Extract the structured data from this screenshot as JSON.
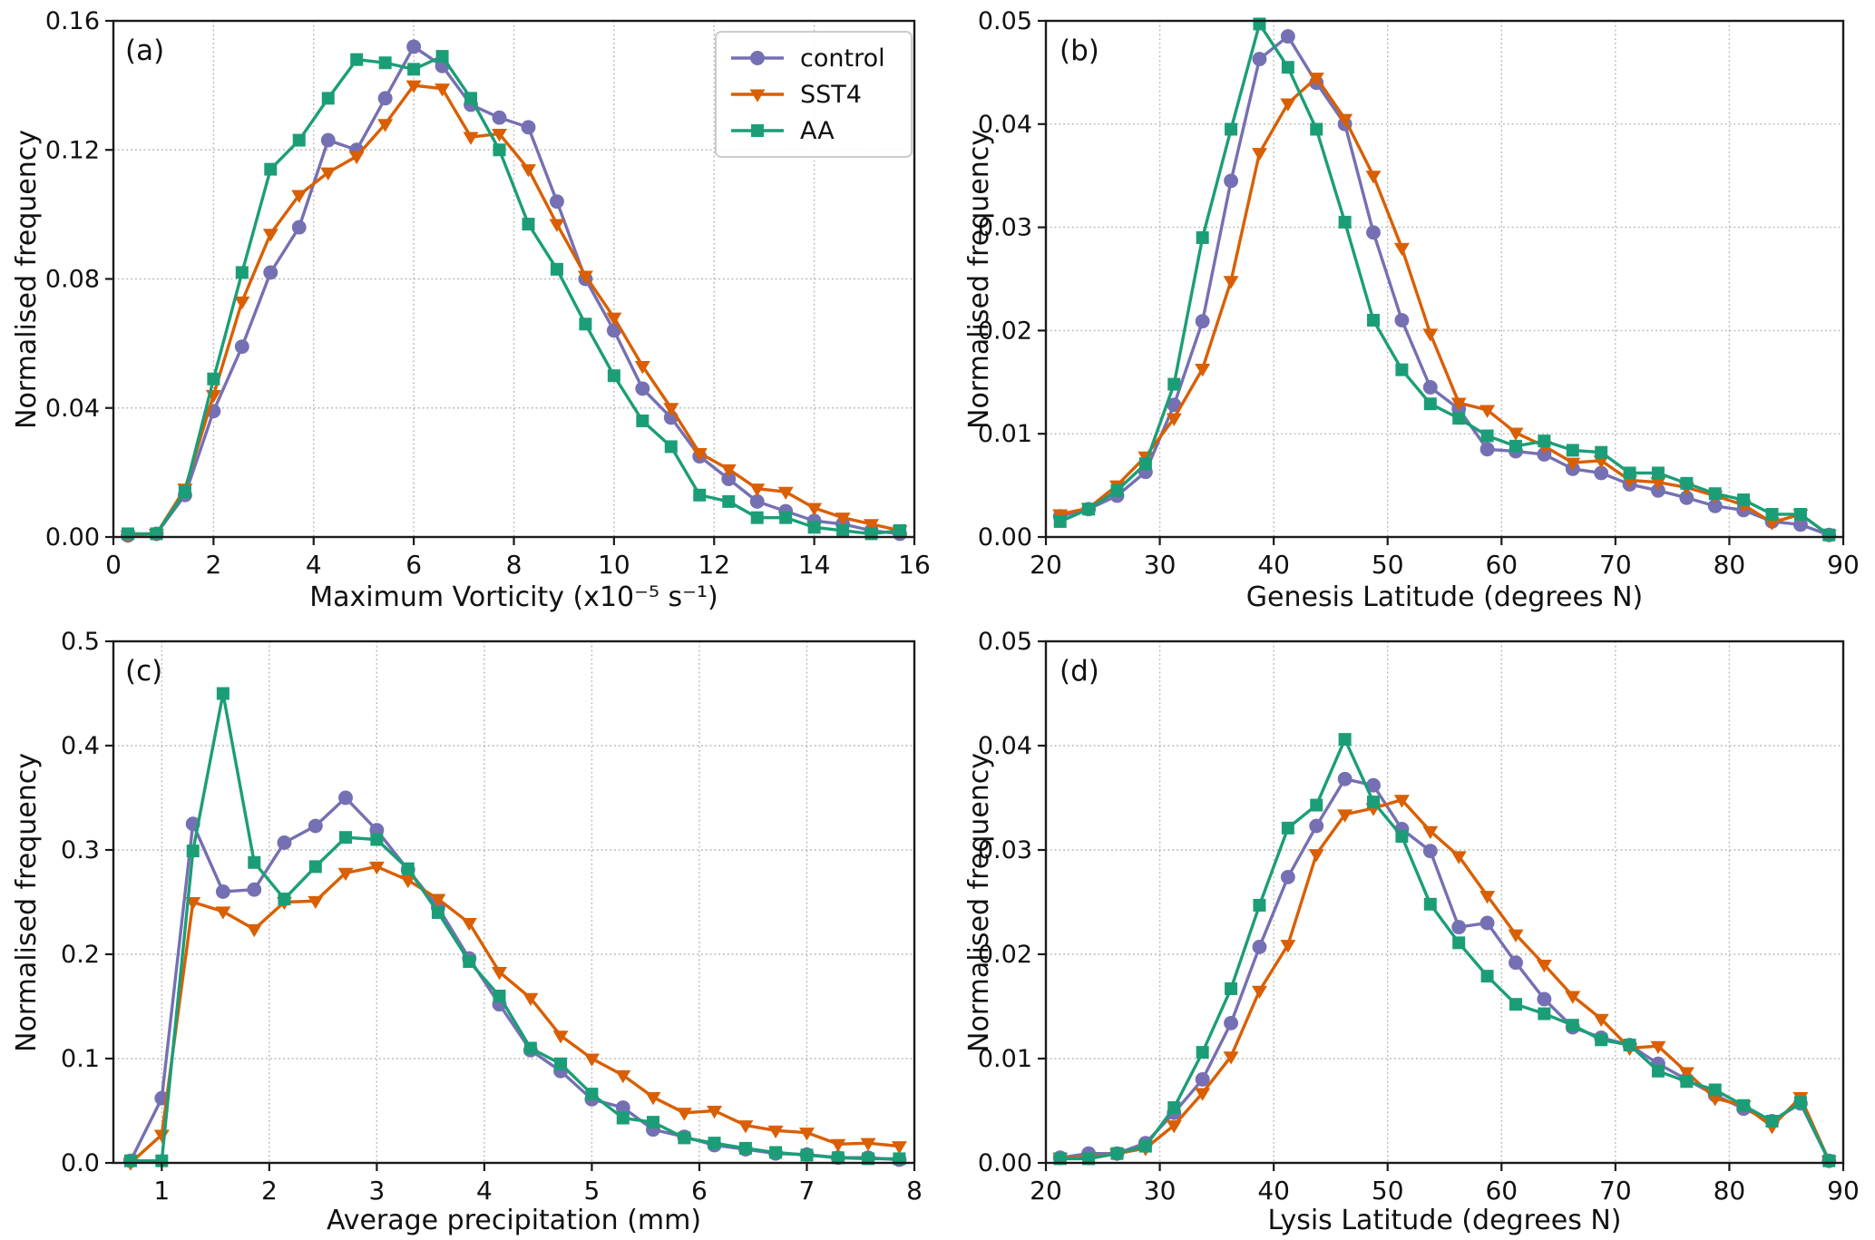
{
  "figure": {
    "background": "#ffffff"
  },
  "legend": {
    "title": ""
  },
  "series_colors": {
    "control": "#7570b3",
    "SST4": "#d95f02",
    "AA": "#1b9e77"
  },
  "chart_data": [
    {
      "id": "a",
      "type": "line",
      "panel_label": "(a)",
      "xlabel": "Maximum Vorticity (x10⁻⁵ s⁻¹)",
      "ylabel": "Normalised frequency",
      "xlim": [
        0,
        16
      ],
      "ylim": [
        0,
        0.16
      ],
      "grid": true,
      "legend_position": "upper right",
      "xticks": [
        0,
        2,
        4,
        6,
        8,
        10,
        12,
        14,
        16
      ],
      "xtick_labels": [
        "0",
        "2",
        "4",
        "6",
        "8",
        "10",
        "12",
        "14",
        "16"
      ],
      "yticks": [
        0,
        0.04,
        0.08,
        0.12,
        0.16
      ],
      "ytick_labels": [
        "0.00",
        "0.04",
        "0.08",
        "0.12",
        "0.16"
      ],
      "x": [
        0.29,
        0.86,
        1.43,
        2.0,
        2.57,
        3.14,
        3.71,
        4.29,
        4.86,
        5.43,
        6.0,
        6.57,
        7.14,
        7.71,
        8.29,
        8.86,
        9.43,
        10.0,
        10.57,
        11.14,
        11.71,
        12.29,
        12.86,
        13.43,
        14.0,
        14.57,
        15.14,
        15.71
      ],
      "series": [
        {
          "name": "control",
          "color": "#7570b3",
          "marker": "circle",
          "values": [
            0.0005,
            0.001,
            0.013,
            0.039,
            0.059,
            0.082,
            0.096,
            0.123,
            0.12,
            0.136,
            0.152,
            0.146,
            0.134,
            0.13,
            0.127,
            0.104,
            0.08,
            0.064,
            0.046,
            0.037,
            0.025,
            0.018,
            0.011,
            0.008,
            0.005,
            0.004,
            0.002,
            0.001
          ]
        },
        {
          "name": "SST4",
          "color": "#d95f02",
          "marker": "triangle-down",
          "values": [
            0.0005,
            0.001,
            0.015,
            0.044,
            0.073,
            0.094,
            0.106,
            0.113,
            0.118,
            0.128,
            0.14,
            0.139,
            0.124,
            0.125,
            0.114,
            0.097,
            0.081,
            0.068,
            0.053,
            0.04,
            0.026,
            0.021,
            0.015,
            0.014,
            0.009,
            0.006,
            0.004,
            0.002
          ]
        },
        {
          "name": "AA",
          "color": "#1b9e77",
          "marker": "square",
          "values": [
            0.001,
            0.001,
            0.014,
            0.049,
            0.082,
            0.114,
            0.123,
            0.136,
            0.148,
            0.147,
            0.145,
            0.149,
            0.136,
            0.12,
            0.097,
            0.083,
            0.066,
            0.05,
            0.036,
            0.028,
            0.013,
            0.011,
            0.006,
            0.006,
            0.003,
            0.002,
            0.001,
            0.002
          ]
        }
      ]
    },
    {
      "id": "b",
      "type": "line",
      "panel_label": "(b)",
      "xlabel": "Genesis Latitude (degrees N)",
      "ylabel": "Normalised frequency",
      "xlim": [
        20,
        90
      ],
      "ylim": [
        0,
        0.05
      ],
      "grid": true,
      "xticks": [
        20,
        30,
        40,
        50,
        60,
        70,
        80,
        90
      ],
      "xtick_labels": [
        "20",
        "30",
        "40",
        "50",
        "60",
        "70",
        "80",
        "90"
      ],
      "yticks": [
        0,
        0.01,
        0.02,
        0.03,
        0.04,
        0.05
      ],
      "ytick_labels": [
        "0.00",
        "0.01",
        "0.02",
        "0.03",
        "0.04",
        "0.05"
      ],
      "x": [
        21.25,
        23.75,
        26.25,
        28.75,
        31.25,
        33.75,
        36.25,
        38.75,
        41.25,
        43.75,
        46.25,
        48.75,
        51.25,
        53.75,
        56.25,
        58.75,
        61.25,
        63.75,
        66.25,
        68.75,
        71.25,
        73.75,
        76.25,
        78.75,
        81.25,
        83.75,
        86.25,
        88.75
      ],
      "series": [
        {
          "name": "control",
          "color": "#7570b3",
          "marker": "circle",
          "values": [
            0.002,
            0.0027,
            0.004,
            0.0063,
            0.0128,
            0.0209,
            0.0345,
            0.0463,
            0.0485,
            0.044,
            0.04,
            0.0295,
            0.021,
            0.0145,
            0.0124,
            0.0085,
            0.0083,
            0.008,
            0.0066,
            0.0062,
            0.0051,
            0.0045,
            0.0038,
            0.003,
            0.0026,
            0.0015,
            0.0012,
            0.0002
          ]
        },
        {
          "name": "SST4",
          "color": "#d95f02",
          "marker": "triangle-down",
          "values": [
            0.0022,
            0.0028,
            0.005,
            0.0078,
            0.0115,
            0.0163,
            0.0248,
            0.0372,
            0.042,
            0.0445,
            0.0405,
            0.035,
            0.028,
            0.0197,
            0.013,
            0.0123,
            0.0101,
            0.0088,
            0.0072,
            0.0074,
            0.0055,
            0.0053,
            0.0048,
            0.004,
            0.0031,
            0.0014,
            0.0022,
            0.0002
          ]
        },
        {
          "name": "AA",
          "color": "#1b9e77",
          "marker": "square",
          "values": [
            0.0015,
            0.0027,
            0.0045,
            0.0071,
            0.0148,
            0.029,
            0.0395,
            0.0497,
            0.0455,
            0.0395,
            0.0305,
            0.021,
            0.0162,
            0.0129,
            0.0115,
            0.0098,
            0.0088,
            0.0093,
            0.0084,
            0.0082,
            0.0062,
            0.0062,
            0.0052,
            0.0042,
            0.0036,
            0.0022,
            0.0022,
            0.0002
          ]
        }
      ]
    },
    {
      "id": "c",
      "type": "line",
      "panel_label": "(c)",
      "xlabel": "Average precipitation (mm)",
      "ylabel": "Normalised frequency",
      "xlim": [
        0.55,
        8
      ],
      "ylim": [
        0,
        0.5
      ],
      "grid": true,
      "xticks": [
        1,
        2,
        3,
        4,
        5,
        6,
        7,
        8
      ],
      "xtick_labels": [
        "1",
        "2",
        "3",
        "4",
        "5",
        "6",
        "7",
        "8"
      ],
      "yticks": [
        0,
        0.1,
        0.2,
        0.3,
        0.4,
        0.5
      ],
      "ytick_labels": [
        "0.0",
        "0.1",
        "0.2",
        "0.3",
        "0.4",
        "0.5"
      ],
      "x": [
        0.71,
        1.0,
        1.29,
        1.57,
        1.86,
        2.14,
        2.43,
        2.71,
        3.0,
        3.29,
        3.57,
        3.86,
        4.14,
        4.43,
        4.71,
        5.0,
        5.29,
        5.57,
        5.86,
        6.14,
        6.43,
        6.71,
        7.0,
        7.29,
        7.57,
        7.86
      ],
      "series": [
        {
          "name": "control",
          "color": "#7570b3",
          "marker": "circle",
          "values": [
            0.002,
            0.062,
            0.325,
            0.26,
            0.262,
            0.307,
            0.323,
            0.35,
            0.319,
            0.281,
            0.245,
            0.196,
            0.152,
            0.108,
            0.088,
            0.061,
            0.053,
            0.032,
            0.025,
            0.017,
            0.013,
            0.009,
            0.008,
            0.005,
            0.005,
            0.003
          ]
        },
        {
          "name": "SST4",
          "color": "#d95f02",
          "marker": "triangle-down",
          "values": [
            0.0,
            0.027,
            0.25,
            0.241,
            0.224,
            0.25,
            0.251,
            0.278,
            0.284,
            0.271,
            0.253,
            0.23,
            0.183,
            0.158,
            0.122,
            0.1,
            0.084,
            0.063,
            0.048,
            0.05,
            0.036,
            0.031,
            0.029,
            0.018,
            0.019,
            0.016
          ]
        },
        {
          "name": "AA",
          "color": "#1b9e77",
          "marker": "square",
          "values": [
            0.002,
            0.002,
            0.299,
            0.45,
            0.288,
            0.253,
            0.284,
            0.312,
            0.31,
            0.282,
            0.24,
            0.193,
            0.16,
            0.11,
            0.095,
            0.066,
            0.043,
            0.039,
            0.024,
            0.019,
            0.014,
            0.01,
            0.0075,
            0.005,
            0.004,
            0.004
          ]
        }
      ]
    },
    {
      "id": "d",
      "type": "line",
      "panel_label": "(d)",
      "xlabel": "Lysis Latitude (degrees N)",
      "ylabel": "Normalised frequency",
      "xlim": [
        20,
        90
      ],
      "ylim": [
        0,
        0.05
      ],
      "grid": true,
      "xticks": [
        20,
        30,
        40,
        50,
        60,
        70,
        80,
        90
      ],
      "xtick_labels": [
        "20",
        "30",
        "40",
        "50",
        "60",
        "70",
        "80",
        "90"
      ],
      "yticks": [
        0,
        0.01,
        0.02,
        0.03,
        0.04,
        0.05
      ],
      "ytick_labels": [
        "0.00",
        "0.01",
        "0.02",
        "0.03",
        "0.04",
        "0.05"
      ],
      "x": [
        21.25,
        23.75,
        26.25,
        28.75,
        31.25,
        33.75,
        36.25,
        38.75,
        41.25,
        43.75,
        46.25,
        48.75,
        51.25,
        53.75,
        56.25,
        58.75,
        61.25,
        63.75,
        66.25,
        68.75,
        71.25,
        73.75,
        76.25,
        78.75,
        81.25,
        83.75,
        86.25,
        88.75
      ],
      "series": [
        {
          "name": "control",
          "color": "#7570b3",
          "marker": "circle",
          "values": [
            0.0005,
            0.0009,
            0.0009,
            0.0019,
            0.0048,
            0.008,
            0.0134,
            0.0207,
            0.0274,
            0.0323,
            0.0368,
            0.0362,
            0.032,
            0.0299,
            0.0226,
            0.023,
            0.0192,
            0.0157,
            0.013,
            0.012,
            0.0113,
            0.0095,
            0.008,
            0.0065,
            0.0052,
            0.004,
            0.0057,
            0.0002
          ]
        },
        {
          "name": "SST4",
          "color": "#d95f02",
          "marker": "triangle-down",
          "values": [
            0.0005,
            0.0005,
            0.0009,
            0.0014,
            0.0036,
            0.0067,
            0.0102,
            0.0165,
            0.0209,
            0.0296,
            0.0334,
            0.034,
            0.0348,
            0.0318,
            0.0294,
            0.0256,
            0.0219,
            0.019,
            0.016,
            0.0138,
            0.011,
            0.0112,
            0.0087,
            0.0062,
            0.0055,
            0.0035,
            0.0063,
            0.0002
          ]
        },
        {
          "name": "AA",
          "color": "#1b9e77",
          "marker": "square",
          "values": [
            0.0004,
            0.0004,
            0.0009,
            0.0016,
            0.0053,
            0.0106,
            0.0167,
            0.0247,
            0.0321,
            0.0343,
            0.0406,
            0.0346,
            0.0313,
            0.0248,
            0.0211,
            0.0179,
            0.0152,
            0.0143,
            0.0132,
            0.0118,
            0.0113,
            0.0088,
            0.0078,
            0.007,
            0.0055,
            0.004,
            0.0058,
            0.0002
          ]
        }
      ]
    }
  ]
}
